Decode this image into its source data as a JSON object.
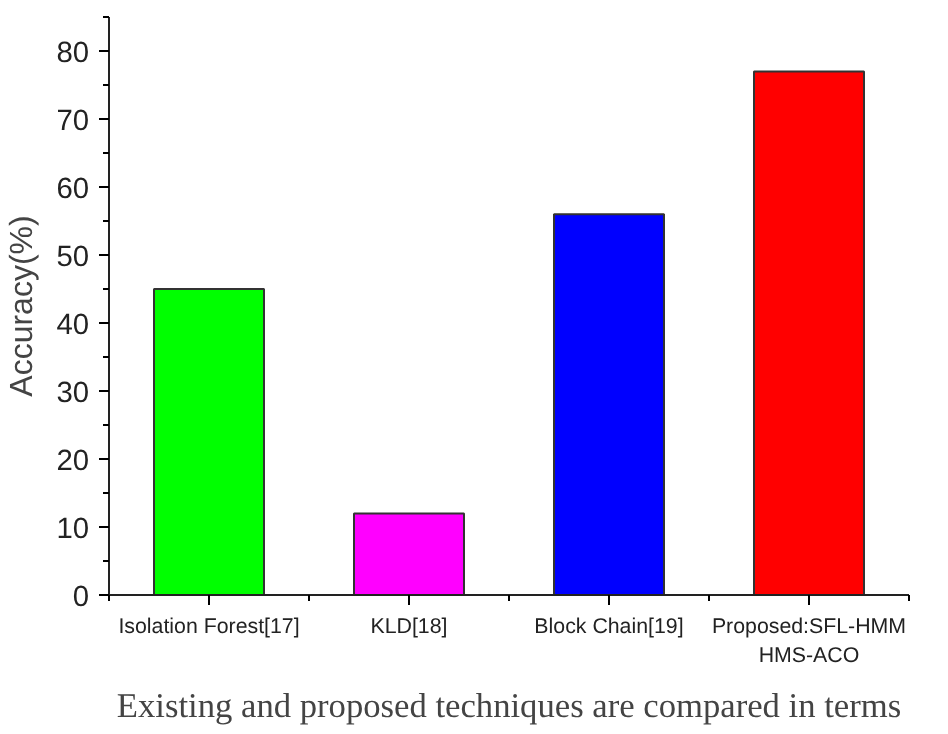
{
  "chart_data": {
    "type": "bar",
    "ylabel": "Accuracy(%)",
    "categories": [
      "Isolation Forest[17]",
      "KLD[18]",
      "Block Chain[19]",
      "Proposed:SFL-HMM\nHMS-ACO"
    ],
    "values": [
      45,
      12,
      56,
      77
    ],
    "colors": [
      "#00ff00",
      "#ff00ff",
      "#0000ff",
      "#ff0000"
    ],
    "ylim": [
      0,
      85
    ],
    "yticks": [
      0,
      10,
      20,
      30,
      40,
      50,
      60,
      70,
      80
    ],
    "grid": false,
    "annotations": [
      "Existing and proposed techniques are compared in terms"
    ]
  }
}
